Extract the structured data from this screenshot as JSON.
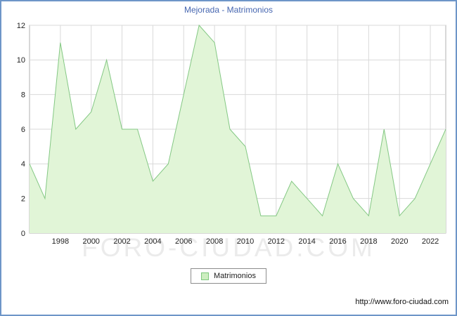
{
  "title": "Mejorada - Matrimonios",
  "legend": {
    "label": "Matrimonios"
  },
  "watermark": "FORO-CIUDAD.COM",
  "footer": {
    "url": "http://www.foro-ciudad.com"
  },
  "colors": {
    "title": "#4666b0",
    "frame": "#6e96c8",
    "line": "#84c884",
    "fill": "#e1f5d7",
    "grid": "#d9d9d9",
    "plot_border": "#b0b0b0"
  },
  "chart_data": {
    "type": "area",
    "title": "Mejorada - Matrimonios",
    "x": [
      1996,
      1997,
      1998,
      1999,
      2000,
      2001,
      2002,
      2003,
      2004,
      2005,
      2006,
      2007,
      2008,
      2009,
      2010,
      2011,
      2012,
      2013,
      2014,
      2015,
      2016,
      2017,
      2018,
      2019,
      2020,
      2021,
      2022,
      2023
    ],
    "values": [
      4,
      2,
      11,
      6,
      7,
      10,
      6,
      6,
      3,
      4,
      8,
      12,
      11,
      6,
      5,
      1,
      1,
      3,
      2,
      1,
      4,
      2,
      1,
      6,
      1,
      2,
      4,
      6
    ],
    "series_name": "Matrimonios",
    "xlim": [
      1996,
      2023
    ],
    "ylim": [
      0,
      12
    ],
    "yticks": [
      0,
      2,
      4,
      6,
      8,
      10,
      12
    ],
    "xticks": [
      1998,
      2000,
      2002,
      2004,
      2006,
      2008,
      2010,
      2012,
      2014,
      2016,
      2018,
      2020,
      2022
    ],
    "grid": true,
    "legend_position": "bottom"
  }
}
